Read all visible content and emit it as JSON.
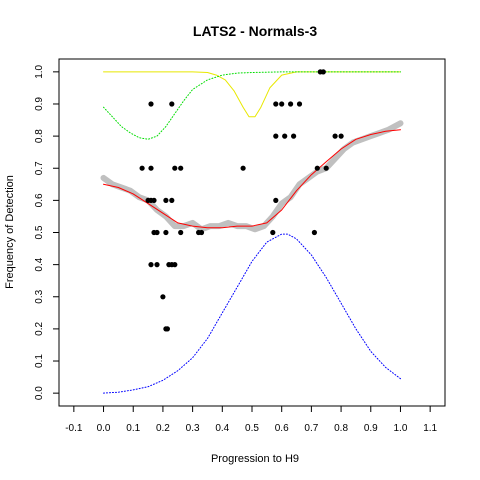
{
  "chart_data": {
    "type": "scatter",
    "title": "LATS2 - Normals-3",
    "xlabel": "Progression to H9",
    "ylabel": "Frequency of Detection",
    "xlim": [
      -0.15,
      1.15
    ],
    "ylim": [
      -0.04,
      1.04
    ],
    "x_ticks": [
      -0.1,
      0.0,
      0.1,
      0.2,
      0.3,
      0.4,
      0.5,
      0.6,
      0.7,
      0.8,
      0.9,
      1.0,
      1.1
    ],
    "x_tick_labels": [
      "-0.1",
      "0.0",
      "0.1",
      "0.2",
      "0.3",
      "0.4",
      "0.5",
      "0.6",
      "0.7",
      "0.8",
      "0.9",
      "1.0",
      "1.1"
    ],
    "y_ticks": [
      0.0,
      0.1,
      0.2,
      0.3,
      0.4,
      0.5,
      0.6,
      0.7,
      0.8,
      0.9,
      1.0
    ],
    "y_tick_labels": [
      "0.0",
      "0.1",
      "0.2",
      "0.3",
      "0.4",
      "0.5",
      "0.6",
      "0.7",
      "0.8",
      "0.9",
      "1.0"
    ],
    "grid": false,
    "legend": "none",
    "colors": {
      "points": "#000000",
      "running_mean": "#c0c0c0",
      "fit": "#ff0000",
      "density_blue": "#0000ff",
      "density_green": "#00dd00",
      "density_yellow": "#e8e800"
    },
    "scatter_points": [
      {
        "x": 0.16,
        "y": 0.9
      },
      {
        "x": 0.23,
        "y": 0.9
      },
      {
        "x": 0.58,
        "y": 0.9
      },
      {
        "x": 0.6,
        "y": 0.9
      },
      {
        "x": 0.63,
        "y": 0.9
      },
      {
        "x": 0.66,
        "y": 0.9
      },
      {
        "x": 0.73,
        "y": 1.0
      },
      {
        "x": 0.74,
        "y": 1.0
      },
      {
        "x": 0.58,
        "y": 0.8
      },
      {
        "x": 0.61,
        "y": 0.8
      },
      {
        "x": 0.64,
        "y": 0.8
      },
      {
        "x": 0.78,
        "y": 0.8
      },
      {
        "x": 0.8,
        "y": 0.8
      },
      {
        "x": 0.13,
        "y": 0.7
      },
      {
        "x": 0.16,
        "y": 0.7
      },
      {
        "x": 0.24,
        "y": 0.7
      },
      {
        "x": 0.26,
        "y": 0.7
      },
      {
        "x": 0.47,
        "y": 0.7
      },
      {
        "x": 0.72,
        "y": 0.7
      },
      {
        "x": 0.75,
        "y": 0.7
      },
      {
        "x": 0.15,
        "y": 0.6
      },
      {
        "x": 0.16,
        "y": 0.6
      },
      {
        "x": 0.17,
        "y": 0.6
      },
      {
        "x": 0.21,
        "y": 0.6
      },
      {
        "x": 0.23,
        "y": 0.6
      },
      {
        "x": 0.58,
        "y": 0.6
      },
      {
        "x": 0.17,
        "y": 0.5
      },
      {
        "x": 0.18,
        "y": 0.5
      },
      {
        "x": 0.21,
        "y": 0.5
      },
      {
        "x": 0.26,
        "y": 0.5
      },
      {
        "x": 0.32,
        "y": 0.5
      },
      {
        "x": 0.33,
        "y": 0.5
      },
      {
        "x": 0.57,
        "y": 0.5
      },
      {
        "x": 0.71,
        "y": 0.5
      },
      {
        "x": 0.16,
        "y": 0.4
      },
      {
        "x": 0.18,
        "y": 0.4
      },
      {
        "x": 0.22,
        "y": 0.4
      },
      {
        "x": 0.23,
        "y": 0.4
      },
      {
        "x": 0.24,
        "y": 0.4
      },
      {
        "x": 0.2,
        "y": 0.3
      },
      {
        "x": 0.21,
        "y": 0.2
      },
      {
        "x": 0.215,
        "y": 0.2
      }
    ],
    "series": [
      {
        "style": "thick-gray-running-mean",
        "x": [
          0.0,
          0.03,
          0.06,
          0.09,
          0.12,
          0.15,
          0.18,
          0.21,
          0.24,
          0.27,
          0.3,
          0.33,
          0.36,
          0.39,
          0.42,
          0.45,
          0.48,
          0.51,
          0.54,
          0.57,
          0.6,
          0.63,
          0.66,
          0.69,
          0.72,
          0.75,
          0.78,
          0.81,
          0.84,
          0.87,
          0.9,
          0.93,
          0.96,
          1.0
        ],
        "y": [
          0.67,
          0.65,
          0.64,
          0.63,
          0.61,
          0.6,
          0.57,
          0.55,
          0.52,
          0.52,
          0.53,
          0.51,
          0.52,
          0.52,
          0.53,
          0.52,
          0.52,
          0.51,
          0.52,
          0.55,
          0.59,
          0.61,
          0.65,
          0.67,
          0.69,
          0.7,
          0.73,
          0.76,
          0.78,
          0.79,
          0.8,
          0.81,
          0.82,
          0.84
        ]
      },
      {
        "style": "red-fit",
        "x": [
          0.0,
          0.05,
          0.1,
          0.15,
          0.2,
          0.25,
          0.3,
          0.35,
          0.4,
          0.45,
          0.5,
          0.55,
          0.6,
          0.65,
          0.7,
          0.75,
          0.8,
          0.85,
          0.9,
          0.95,
          1.0
        ],
        "y": [
          0.65,
          0.64,
          0.62,
          0.59,
          0.56,
          0.53,
          0.52,
          0.515,
          0.515,
          0.52,
          0.52,
          0.53,
          0.57,
          0.63,
          0.68,
          0.72,
          0.76,
          0.79,
          0.805,
          0.815,
          0.82
        ]
      },
      {
        "style": "blue-dotted-density",
        "x": [
          0.0,
          0.05,
          0.1,
          0.15,
          0.2,
          0.25,
          0.3,
          0.35,
          0.4,
          0.45,
          0.5,
          0.55,
          0.6,
          0.62,
          0.65,
          0.7,
          0.75,
          0.8,
          0.85,
          0.9,
          0.95,
          1.0
        ],
        "y": [
          0.0,
          0.003,
          0.01,
          0.02,
          0.04,
          0.07,
          0.11,
          0.17,
          0.25,
          0.33,
          0.41,
          0.47,
          0.495,
          0.495,
          0.48,
          0.43,
          0.36,
          0.28,
          0.2,
          0.13,
          0.08,
          0.045
        ]
      },
      {
        "style": "green-dotted-density",
        "x": [
          0.0,
          0.03,
          0.06,
          0.09,
          0.12,
          0.15,
          0.18,
          0.21,
          0.24,
          0.27,
          0.3,
          0.35,
          0.4,
          0.45,
          0.5,
          0.55,
          0.6,
          0.7,
          0.8,
          0.9,
          1.0
        ],
        "y": [
          0.89,
          0.86,
          0.83,
          0.81,
          0.795,
          0.79,
          0.8,
          0.83,
          0.87,
          0.91,
          0.945,
          0.975,
          0.99,
          0.996,
          0.998,
          0.999,
          1.0,
          1.0,
          1.0,
          1.0,
          1.0
        ]
      },
      {
        "style": "yellow-dotted-density",
        "x": [
          0.0,
          0.1,
          0.2,
          0.3,
          0.35,
          0.38,
          0.41,
          0.44,
          0.47,
          0.49,
          0.51,
          0.53,
          0.56,
          0.6,
          0.65,
          0.7,
          0.8,
          0.9,
          1.0
        ],
        "y": [
          1.0,
          1.0,
          1.0,
          1.0,
          0.998,
          0.99,
          0.975,
          0.94,
          0.89,
          0.86,
          0.86,
          0.89,
          0.95,
          0.99,
          1.0,
          1.0,
          1.0,
          1.0,
          1.0
        ]
      }
    ]
  }
}
